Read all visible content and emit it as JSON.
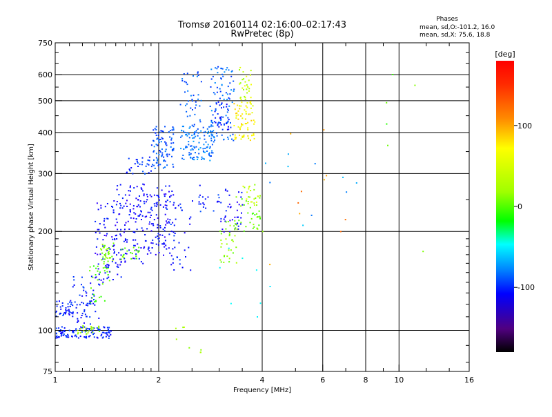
{
  "chart_data": {
    "type": "scatter",
    "title": "Tromsø 20160114 02:16:00–02:17:43",
    "subtitle": "RwPretec (8p)",
    "xlabel": "Frequency [MHz]",
    "ylabel": "Stationary phase Virtual Height [km]",
    "x_scale": "log",
    "y_scale": "log",
    "xlim": [
      1,
      16
    ],
    "ylim": [
      75,
      750
    ],
    "x_ticks": [
      1,
      2,
      4,
      6,
      8,
      10,
      16
    ],
    "x_tick_labels": [
      "1",
      "2",
      "4",
      "6",
      "8",
      "10",
      "16"
    ],
    "y_ticks": [
      75,
      100,
      200,
      300,
      400,
      500,
      600,
      750
    ],
    "y_tick_labels": [
      "75",
      "100",
      "200",
      "300",
      "400",
      "500",
      "600",
      "750"
    ],
    "grid": true,
    "legend": {
      "title": "Phases",
      "line1": "mean, sd,O:-101.2, 16.0",
      "line2": "mean, sd,X:  75.6, 18.8"
    },
    "colorbar": {
      "label": "[deg]",
      "range": [
        -180,
        180
      ],
      "ticks": [
        100,
        0,
        -100
      ],
      "tick_labels": [
        "100",
        "0",
        "-100"
      ]
    },
    "series": [
      {
        "x": [
          1.0,
          1.12
        ],
        "y": [
          110,
          125
        ],
        "phase": -100,
        "count": 40
      },
      {
        "x": [
          1.0,
          1.45
        ],
        "y": [
          95,
          103
        ],
        "phase": -100,
        "count": 110
      },
      {
        "x": [
          1.15,
          1.35
        ],
        "y": [
          98,
          104
        ],
        "phase": 80,
        "count": 25
      },
      {
        "x": [
          1.12,
          1.35
        ],
        "y": [
          105,
          150
        ],
        "phase": -100,
        "count": 60
      },
      {
        "x": [
          1.25,
          1.45
        ],
        "y": [
          120,
          160
        ],
        "phase": 55,
        "count": 30
      },
      {
        "x": [
          1.3,
          1.55
        ],
        "y": [
          140,
          250
        ],
        "phase": -110,
        "count": 90
      },
      {
        "x": [
          1.35,
          1.5
        ],
        "y": [
          160,
          185
        ],
        "phase": 70,
        "count": 35
      },
      {
        "x": [
          1.5,
          1.8
        ],
        "y": [
          160,
          280
        ],
        "phase": -110,
        "count": 100
      },
      {
        "x": [
          1.55,
          1.75
        ],
        "y": [
          165,
          180
        ],
        "phase": 60,
        "count": 20
      },
      {
        "x": [
          1.6,
          1.9
        ],
        "y": [
          300,
          340
        ],
        "phase": -95,
        "count": 30
      },
      {
        "x": [
          1.8,
          2.2
        ],
        "y": [
          170,
          280
        ],
        "phase": -110,
        "count": 120
      },
      {
        "x": [
          1.9,
          2.2
        ],
        "y": [
          310,
          420
        ],
        "phase": -85,
        "count": 90
      },
      {
        "x": [
          2.1,
          2.5
        ],
        "y": [
          150,
          250
        ],
        "phase": -100,
        "count": 40
      },
      {
        "x": [
          2.3,
          2.9
        ],
        "y": [
          330,
          420
        ],
        "phase": -75,
        "count": 120
      },
      {
        "x": [
          2.3,
          2.65
        ],
        "y": [
          420,
          620
        ],
        "phase": -80,
        "count": 40
      },
      {
        "x": [
          2.8,
          3.3
        ],
        "y": [
          380,
          640
        ],
        "phase": -80,
        "count": 90
      },
      {
        "x": [
          2.9,
          3.2
        ],
        "y": [
          400,
          500
        ],
        "phase": -100,
        "count": 30
      },
      {
        "x": [
          3.3,
          3.8
        ],
        "y": [
          380,
          500
        ],
        "phase": 110,
        "count": 70
      },
      {
        "x": [
          3.4,
          3.7
        ],
        "y": [
          500,
          640
        ],
        "phase": 90,
        "count": 30
      },
      {
        "x": [
          2.6,
          3.0
        ],
        "y": [
          230,
          280
        ],
        "phase": -100,
        "count": 20
      },
      {
        "x": [
          3.0,
          3.5
        ],
        "y": [
          200,
          270
        ],
        "phase": -110,
        "count": 40
      },
      {
        "x": [
          3.0,
          3.4
        ],
        "y": [
          160,
          220
        ],
        "phase": 75,
        "count": 35
      },
      {
        "x": [
          3.3,
          4.0
        ],
        "y": [
          200,
          260
        ],
        "phase": 65,
        "count": 40
      },
      {
        "x": [
          3.5,
          3.9
        ],
        "y": [
          240,
          290
        ],
        "phase": 90,
        "count": 20
      },
      {
        "x": [
          4.0,
          7.6
        ],
        "y": [
          150,
          560
        ],
        "phase": 140,
        "count": 10
      },
      {
        "x": [
          4.0,
          7.6
        ],
        "y": [
          150,
          560
        ],
        "phase": -60,
        "count": 10
      },
      {
        "x": [
          9.0,
          12.5
        ],
        "y": [
          110,
          650
        ],
        "phase": 60,
        "count": 6
      },
      {
        "x": [
          2.0,
          3.0
        ],
        "y": [
          85,
          110
        ],
        "phase": 80,
        "count": 8
      },
      {
        "x": [
          3.0,
          4.5
        ],
        "y": [
          110,
          180
        ],
        "phase": -30,
        "count": 8
      }
    ]
  }
}
